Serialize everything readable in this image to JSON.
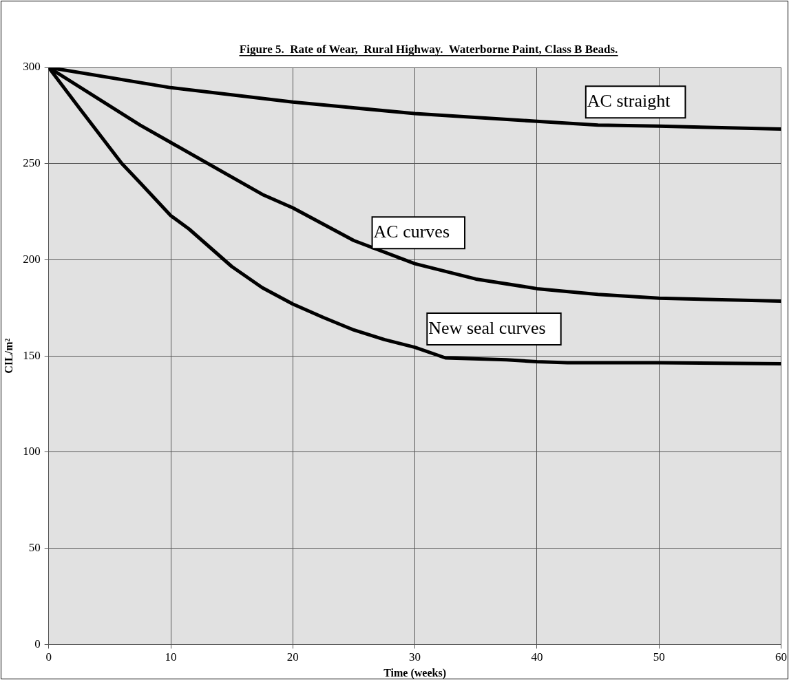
{
  "chart_data": {
    "type": "line",
    "title": "Figure 5.  Rate of Wear,  Rural Highway.  Waterborne Paint, Class B Beads.",
    "xlabel": "Time (weeks)",
    "ylabel": "CIL/m²",
    "xlim": [
      0,
      60
    ],
    "xticks": [
      0,
      10,
      20,
      30,
      40,
      50,
      60
    ],
    "ylim": [
      0,
      300
    ],
    "yticks": [
      0,
      50,
      100,
      150,
      200,
      250,
      300
    ],
    "grid": true,
    "legend": false,
    "marker": "none",
    "line_style": "solid",
    "series": [
      {
        "name": "AC straight",
        "color": "#000000",
        "x": [
          0,
          10,
          20,
          30,
          40,
          45,
          50,
          60
        ],
        "values": [
          300,
          289.5,
          282,
          276,
          272,
          270,
          269.5,
          268
        ]
      },
      {
        "name": "AC curves",
        "color": "#000000",
        "x": [
          0,
          7.5,
          10,
          17.5,
          20,
          25,
          30,
          35,
          40,
          45,
          50,
          60
        ],
        "values": [
          300,
          270,
          261,
          234,
          227,
          210,
          198,
          190,
          185,
          182,
          180,
          178.5
        ]
      },
      {
        "name": "New seal curves",
        "color": "#000000",
        "x": [
          0,
          2.5,
          6,
          7.5,
          10,
          11.5,
          15,
          17.5,
          20,
          22.5,
          25,
          27.5,
          30,
          32.5,
          37.5,
          40,
          42.5,
          50,
          60
        ],
        "values": [
          300,
          279,
          250,
          240,
          223,
          216,
          196.5,
          185.5,
          177,
          170,
          163.5,
          158.5,
          154.5,
          149,
          148,
          147,
          146.5,
          146.5,
          146
        ]
      }
    ]
  }
}
